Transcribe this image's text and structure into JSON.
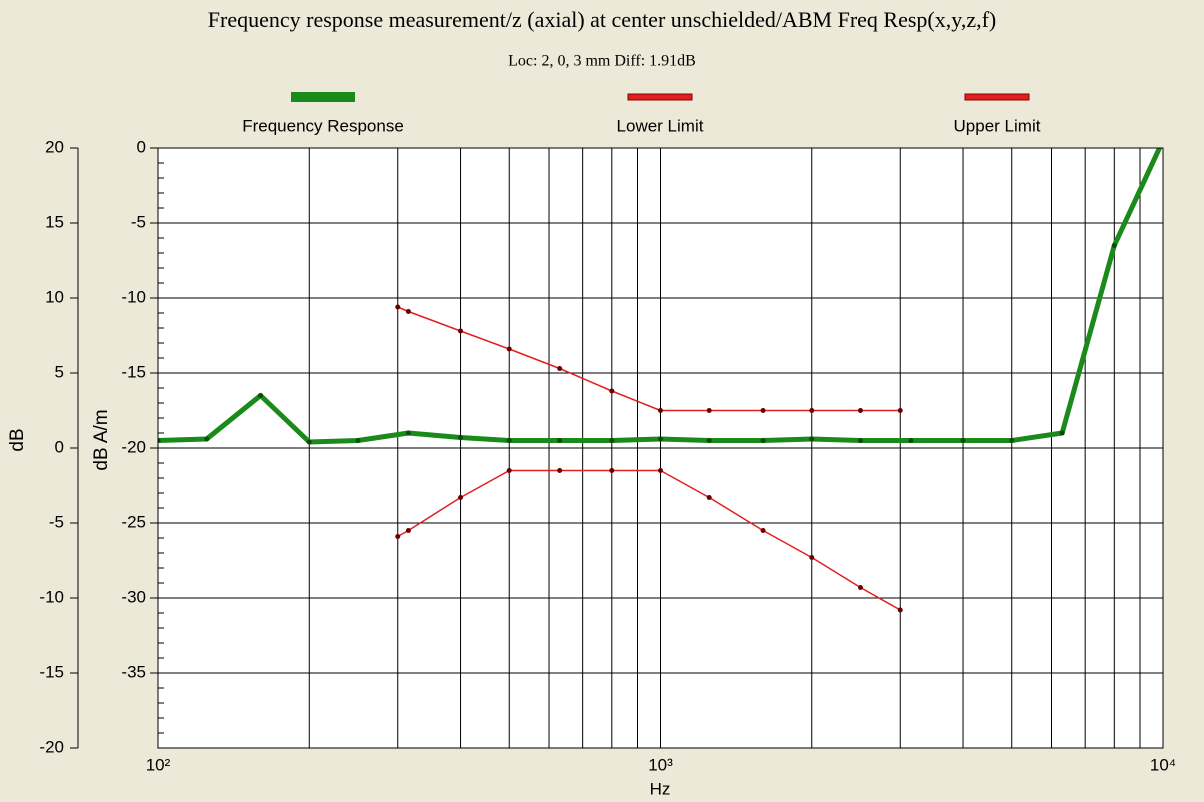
{
  "chart_data": {
    "type": "line",
    "title": "Frequency response measurement/z (axial) at center unschielded/ABM Freq Resp(x,y,z,f)",
    "subtitle": "Loc: 2, 0, 3 mm Diff: 1.91dB",
    "xlabel": "Hz",
    "ylabel": "dB A/m",
    "y2label": "dB",
    "xscale": "log",
    "xlim": [
      100,
      10000
    ],
    "xticks": [
      {
        "value": 100,
        "label": "10²"
      },
      {
        "value": 1000,
        "label": "10³"
      },
      {
        "value": 10000,
        "label": "10⁴"
      }
    ],
    "ylim": [
      -40,
      0
    ],
    "yticks": [
      0,
      -5,
      -10,
      -15,
      -20,
      -25,
      -30,
      -35
    ],
    "y2lim": [
      -20,
      20
    ],
    "y2ticks": [
      20,
      15,
      10,
      5,
      0,
      -5,
      -10,
      -15,
      -20
    ],
    "grid": true,
    "legend": "top",
    "series": [
      {
        "name": "Frequency Response",
        "color": "#1a8a1a",
        "x": [
          100,
          125,
          160,
          200,
          250,
          315,
          400,
          500,
          630,
          800,
          1000,
          1250,
          1600,
          2000,
          2500,
          3150,
          4000,
          5000,
          6300,
          8000,
          10000
        ],
        "values": [
          -19.5,
          -19.4,
          -16.5,
          -19.6,
          -19.5,
          -19,
          -19.3,
          -19.5,
          -19.5,
          -19.5,
          -19.4,
          -19.5,
          -19.5,
          -19.4,
          -19.5,
          -19.5,
          -19.5,
          -19.5,
          -19,
          -6.5,
          0.5
        ]
      },
      {
        "name": "Lower Limit",
        "color": "#e02020",
        "x": [
          300,
          315,
          400,
          500,
          630,
          800,
          1000,
          1250,
          1600,
          2000,
          2500,
          3000
        ],
        "values": [
          -25.9,
          -25.5,
          -23.3,
          -21.5,
          -21.5,
          -21.5,
          -21.5,
          -23.3,
          -25.5,
          -27.3,
          -29.3,
          -30.8
        ]
      },
      {
        "name": "Upper Limit",
        "color": "#e02020",
        "x": [
          300,
          315,
          400,
          500,
          630,
          800,
          1000,
          1250,
          1600,
          2000,
          2500,
          3000
        ],
        "values": [
          -10.6,
          -10.9,
          -12.2,
          -13.4,
          -14.7,
          -16.2,
          -17.5,
          -17.5,
          -17.5,
          -17.5,
          -17.5,
          -17.5
        ]
      }
    ]
  }
}
